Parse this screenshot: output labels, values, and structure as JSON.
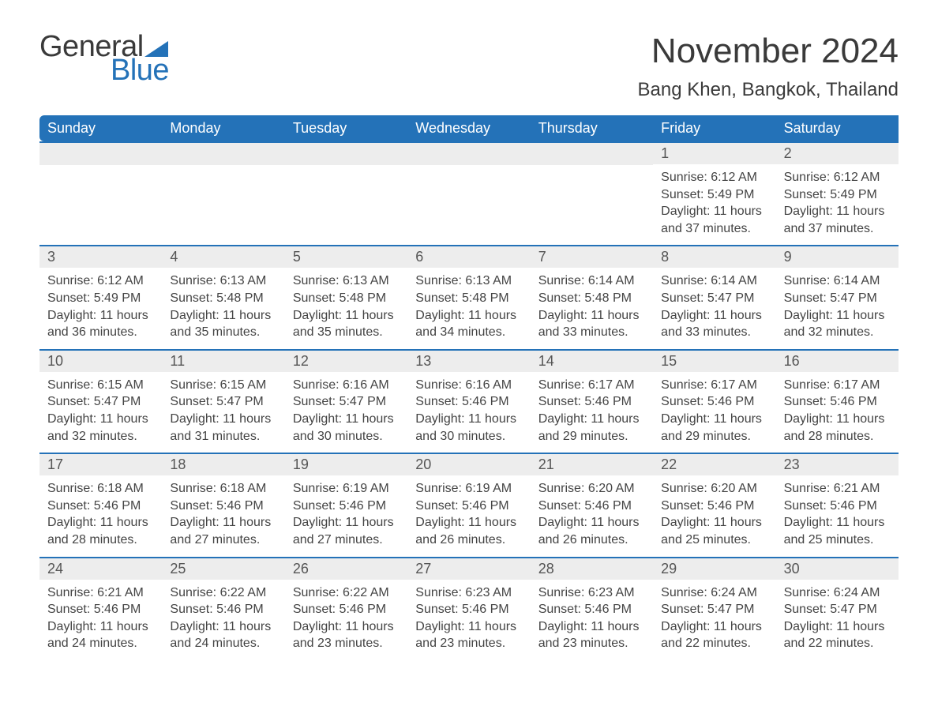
{
  "logo": {
    "word1": "General",
    "word2": "Blue",
    "triangle_color": "#2472b8"
  },
  "title": "November 2024",
  "location": "Bang Khen, Bangkok, Thailand",
  "colors": {
    "header_bg": "#2472b8",
    "header_text": "#ffffff",
    "day_header_bg": "#ededed",
    "border": "#2472b8",
    "text": "#3a3a3a"
  },
  "weekdays": [
    "Sunday",
    "Monday",
    "Tuesday",
    "Wednesday",
    "Thursday",
    "Friday",
    "Saturday"
  ],
  "leading_blanks": 5,
  "days": [
    {
      "n": 1,
      "sunrise": "6:12 AM",
      "sunset": "5:49 PM",
      "daylight": "11 hours and 37 minutes."
    },
    {
      "n": 2,
      "sunrise": "6:12 AM",
      "sunset": "5:49 PM",
      "daylight": "11 hours and 37 minutes."
    },
    {
      "n": 3,
      "sunrise": "6:12 AM",
      "sunset": "5:49 PM",
      "daylight": "11 hours and 36 minutes."
    },
    {
      "n": 4,
      "sunrise": "6:13 AM",
      "sunset": "5:48 PM",
      "daylight": "11 hours and 35 minutes."
    },
    {
      "n": 5,
      "sunrise": "6:13 AM",
      "sunset": "5:48 PM",
      "daylight": "11 hours and 35 minutes."
    },
    {
      "n": 6,
      "sunrise": "6:13 AM",
      "sunset": "5:48 PM",
      "daylight": "11 hours and 34 minutes."
    },
    {
      "n": 7,
      "sunrise": "6:14 AM",
      "sunset": "5:48 PM",
      "daylight": "11 hours and 33 minutes."
    },
    {
      "n": 8,
      "sunrise": "6:14 AM",
      "sunset": "5:47 PM",
      "daylight": "11 hours and 33 minutes."
    },
    {
      "n": 9,
      "sunrise": "6:14 AM",
      "sunset": "5:47 PM",
      "daylight": "11 hours and 32 minutes."
    },
    {
      "n": 10,
      "sunrise": "6:15 AM",
      "sunset": "5:47 PM",
      "daylight": "11 hours and 32 minutes."
    },
    {
      "n": 11,
      "sunrise": "6:15 AM",
      "sunset": "5:47 PM",
      "daylight": "11 hours and 31 minutes."
    },
    {
      "n": 12,
      "sunrise": "6:16 AM",
      "sunset": "5:47 PM",
      "daylight": "11 hours and 30 minutes."
    },
    {
      "n": 13,
      "sunrise": "6:16 AM",
      "sunset": "5:46 PM",
      "daylight": "11 hours and 30 minutes."
    },
    {
      "n": 14,
      "sunrise": "6:17 AM",
      "sunset": "5:46 PM",
      "daylight": "11 hours and 29 minutes."
    },
    {
      "n": 15,
      "sunrise": "6:17 AM",
      "sunset": "5:46 PM",
      "daylight": "11 hours and 29 minutes."
    },
    {
      "n": 16,
      "sunrise": "6:17 AM",
      "sunset": "5:46 PM",
      "daylight": "11 hours and 28 minutes."
    },
    {
      "n": 17,
      "sunrise": "6:18 AM",
      "sunset": "5:46 PM",
      "daylight": "11 hours and 28 minutes."
    },
    {
      "n": 18,
      "sunrise": "6:18 AM",
      "sunset": "5:46 PM",
      "daylight": "11 hours and 27 minutes."
    },
    {
      "n": 19,
      "sunrise": "6:19 AM",
      "sunset": "5:46 PM",
      "daylight": "11 hours and 27 minutes."
    },
    {
      "n": 20,
      "sunrise": "6:19 AM",
      "sunset": "5:46 PM",
      "daylight": "11 hours and 26 minutes."
    },
    {
      "n": 21,
      "sunrise": "6:20 AM",
      "sunset": "5:46 PM",
      "daylight": "11 hours and 26 minutes."
    },
    {
      "n": 22,
      "sunrise": "6:20 AM",
      "sunset": "5:46 PM",
      "daylight": "11 hours and 25 minutes."
    },
    {
      "n": 23,
      "sunrise": "6:21 AM",
      "sunset": "5:46 PM",
      "daylight": "11 hours and 25 minutes."
    },
    {
      "n": 24,
      "sunrise": "6:21 AM",
      "sunset": "5:46 PM",
      "daylight": "11 hours and 24 minutes."
    },
    {
      "n": 25,
      "sunrise": "6:22 AM",
      "sunset": "5:46 PM",
      "daylight": "11 hours and 24 minutes."
    },
    {
      "n": 26,
      "sunrise": "6:22 AM",
      "sunset": "5:46 PM",
      "daylight": "11 hours and 23 minutes."
    },
    {
      "n": 27,
      "sunrise": "6:23 AM",
      "sunset": "5:46 PM",
      "daylight": "11 hours and 23 minutes."
    },
    {
      "n": 28,
      "sunrise": "6:23 AM",
      "sunset": "5:46 PM",
      "daylight": "11 hours and 23 minutes."
    },
    {
      "n": 29,
      "sunrise": "6:24 AM",
      "sunset": "5:47 PM",
      "daylight": "11 hours and 22 minutes."
    },
    {
      "n": 30,
      "sunrise": "6:24 AM",
      "sunset": "5:47 PM",
      "daylight": "11 hours and 22 minutes."
    }
  ],
  "labels": {
    "sunrise": "Sunrise:",
    "sunset": "Sunset:",
    "daylight": "Daylight:"
  }
}
